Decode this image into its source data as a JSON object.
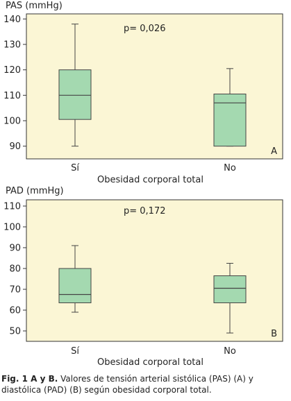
{
  "chart_data": [
    {
      "type": "box",
      "ylabel": "PAS (mmHg)",
      "xlabel": "Obesidad corporal total",
      "categories": [
        "Sí",
        "No"
      ],
      "ylim": [
        85,
        142
      ],
      "yticks": [
        90,
        100,
        110,
        120,
        130,
        140
      ],
      "annotation": "p= 0,026",
      "panel_label": "A",
      "boxes": [
        {
          "category": "Sí",
          "min": 90,
          "q1": 100.5,
          "median": 110,
          "q3": 120,
          "max": 138
        },
        {
          "category": "No",
          "min": 90,
          "q1": 90,
          "median": 107,
          "q3": 110.5,
          "max": 120.5
        }
      ]
    },
    {
      "type": "box",
      "ylabel": "PAD (mmHg)",
      "xlabel": "Obesidad corporal total",
      "categories": [
        "Sí",
        "No"
      ],
      "ylim": [
        45,
        113
      ],
      "yticks": [
        50,
        60,
        70,
        80,
        90,
        100,
        110
      ],
      "annotation": "p= 0,172",
      "panel_label": "B",
      "boxes": [
        {
          "category": "Sí",
          "min": 59,
          "q1": 63.5,
          "median": 67.5,
          "q3": 80,
          "max": 91
        },
        {
          "category": "No",
          "min": 49,
          "q1": 63.5,
          "median": 70.5,
          "q3": 76.5,
          "max": 82.5
        }
      ]
    }
  ],
  "colors": {
    "plot_bg": "#fbf6d5",
    "box_fill": "#a4d9b0",
    "line": "#444444"
  },
  "caption": {
    "label": "Fig. 1 A y B.",
    "text": " Valores de tensión arterial sistólica (PAS) (A) y diastólica (PAD) (B) según obesidad corporal total."
  }
}
